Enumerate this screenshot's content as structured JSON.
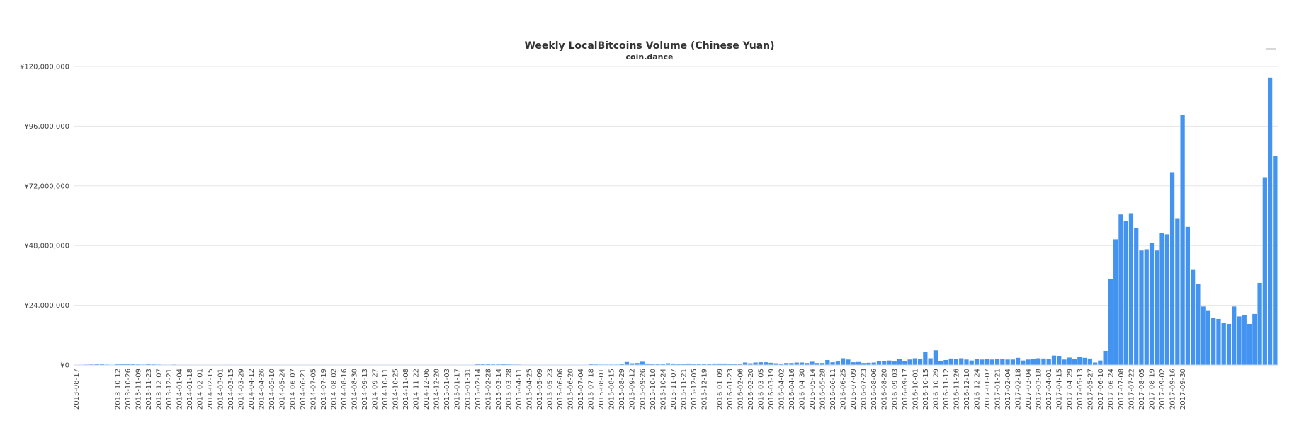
{
  "chart_data": {
    "type": "bar",
    "title": "Weekly LocalBitcoins Volume (Chinese Yuan)",
    "subtitle": "coin.dance",
    "xlabel": "",
    "ylabel": "",
    "ylim": [
      0,
      120000000
    ],
    "y_ticks": [
      "¥0",
      "¥24,000,000",
      "¥48,000,000",
      "¥72,000,000",
      "¥96,000,000",
      "¥120,000,000"
    ],
    "y_tick_values": [
      0,
      24000000,
      48000000,
      72000000,
      96000000,
      120000000
    ],
    "bar_color": "#4393f0",
    "grid": true,
    "legend": "none",
    "first_week": "2013-08-17",
    "week_count": 216,
    "x_tick_labels": [
      "2013-08-17",
      "2013-10-12",
      "2013-10-26",
      "2013-11-09",
      "2013-11-23",
      "2013-12-07",
      "2013-12-21",
      "2014-01-04",
      "2014-01-18",
      "2014-02-01",
      "2014-02-15",
      "2014-03-01",
      "2014-03-15",
      "2014-03-29",
      "2014-04-12",
      "2014-04-26",
      "2014-05-10",
      "2014-05-24",
      "2014-06-07",
      "2014-06-21",
      "2014-07-05",
      "2014-07-19",
      "2014-08-02",
      "2014-08-16",
      "2014-08-30",
      "2014-09-13",
      "2014-09-27",
      "2014-10-11",
      "2014-10-25",
      "2014-11-08",
      "2014-11-22",
      "2014-12-06",
      "2014-12-20",
      "2015-01-03",
      "2015-01-17",
      "2015-01-31",
      "2015-02-14",
      "2015-02-28",
      "2015-03-14",
      "2015-03-28",
      "2015-04-11",
      "2015-04-25",
      "2015-05-09",
      "2015-05-23",
      "2015-06-06",
      "2015-06-20",
      "2015-07-04",
      "2015-07-18",
      "2015-08-01",
      "2015-08-15",
      "2015-08-29",
      "2015-09-12",
      "2015-09-26",
      "2015-10-10",
      "2015-10-24",
      "2015-11-07",
      "2015-11-21",
      "2015-12-05",
      "2015-12-19",
      "2016-01-09",
      "2016-01-23",
      "2016-02-06",
      "2016-02-20",
      "2016-03-05",
      "2016-03-19",
      "2016-04-02",
      "2016-04-16",
      "2016-04-30",
      "2016-05-14",
      "2016-05-28",
      "2016-06-11",
      "2016-06-25",
      "2016-07-09",
      "2016-07-23",
      "2016-08-06",
      "2016-08-20",
      "2016-09-03",
      "2016-09-17",
      "2016-10-01",
      "2016-10-15",
      "2016-10-29",
      "2016-11-12",
      "2016-11-26",
      "2016-12-10",
      "2016-12-24",
      "2017-01-07",
      "2017-01-21",
      "2017-02-04",
      "2017-02-18",
      "2017-03-04",
      "2017-03-18",
      "2017-04-01",
      "2017-04-15",
      "2017-04-29",
      "2017-05-13",
      "2017-05-27",
      "2017-06-10",
      "2017-06-24",
      "2017-07-08",
      "2017-07-22",
      "2017-08-05",
      "2017-08-19",
      "2017-09-02",
      "2017-09-16",
      "2017-09-30"
    ],
    "values": [
      100000,
      150000,
      200000,
      250000,
      300000,
      400000,
      200000,
      150000,
      350000,
      500000,
      450000,
      300000,
      250000,
      200000,
      350000,
      250000,
      200000,
      150000,
      150000,
      200000,
      150000,
      120000,
      150000,
      100000,
      120000,
      100000,
      100000,
      100000,
      100000,
      150000,
      150000,
      100000,
      100000,
      100000,
      100000,
      120000,
      100000,
      100000,
      150000,
      100000,
      100000,
      80000,
      100000,
      80000,
      80000,
      80000,
      80000,
      80000,
      80000,
      80000,
      80000,
      80000,
      80000,
      80000,
      60000,
      60000,
      60000,
      60000,
      60000,
      60000,
      60000,
      60000,
      60000,
      60000,
      60000,
      60000,
      60000,
      60000,
      60000,
      60000,
      60000,
      60000,
      60000,
      60000,
      60000,
      60000,
      60000,
      60000,
      300000,
      350000,
      300000,
      250000,
      250000,
      300000,
      250000,
      200000,
      200000,
      150000,
      150000,
      150000,
      150000,
      150000,
      150000,
      150000,
      150000,
      150000,
      150000,
      150000,
      150000,
      150000,
      300000,
      250000,
      200000,
      200000,
      200000,
      200000,
      300000,
      1200000,
      700000,
      800000,
      1300000,
      600000,
      400000,
      500000,
      500000,
      700000,
      600000,
      500000,
      400000,
      600000,
      500000,
      400000,
      500000,
      500000,
      600000,
      600000,
      600000,
      400000,
      400000,
      500000,
      1000000,
      700000,
      1000000,
      1100000,
      1100000,
      900000,
      700000,
      600000,
      800000,
      800000,
      1000000,
      1000000,
      800000,
      1300000,
      800000,
      800000,
      2000000,
      1100000,
      1400000,
      2700000,
      2200000,
      1100000,
      1200000,
      800000,
      900000,
      1000000,
      1500000,
      1600000,
      1800000,
      1400000,
      2500000,
      1600000,
      2200000,
      2700000,
      2500000,
      5300000,
      2700000,
      5900000,
      1600000,
      2000000,
      2600000,
      2400000,
      2700000,
      2200000,
      1800000,
      2500000,
      2200000,
      2300000,
      2200000,
      2400000,
      2300000,
      2200000,
      2200000,
      2900000,
      1800000,
      2200000,
      2300000,
      2700000,
      2600000,
      2300000,
      3800000,
      3700000,
      2200000,
      3000000,
      2500000,
      3300000,
      2900000,
      2600000,
      1000000,
      1800000,
      5700000,
      34500000,
      50500000,
      60500000,
      58000000,
      61000000,
      55000000,
      46000000,
      46500000,
      49000000,
      46000000,
      53000000,
      52500000,
      77500000,
      59000000,
      100500000,
      55500000,
      38500000,
      32500000,
      23500000,
      22000000,
      19000000,
      18500000,
      17000000,
      16500000,
      23500000,
      19500000,
      20000000,
      16500000,
      20500000,
      33000000,
      75500000,
      115500000,
      84000000
    ]
  }
}
